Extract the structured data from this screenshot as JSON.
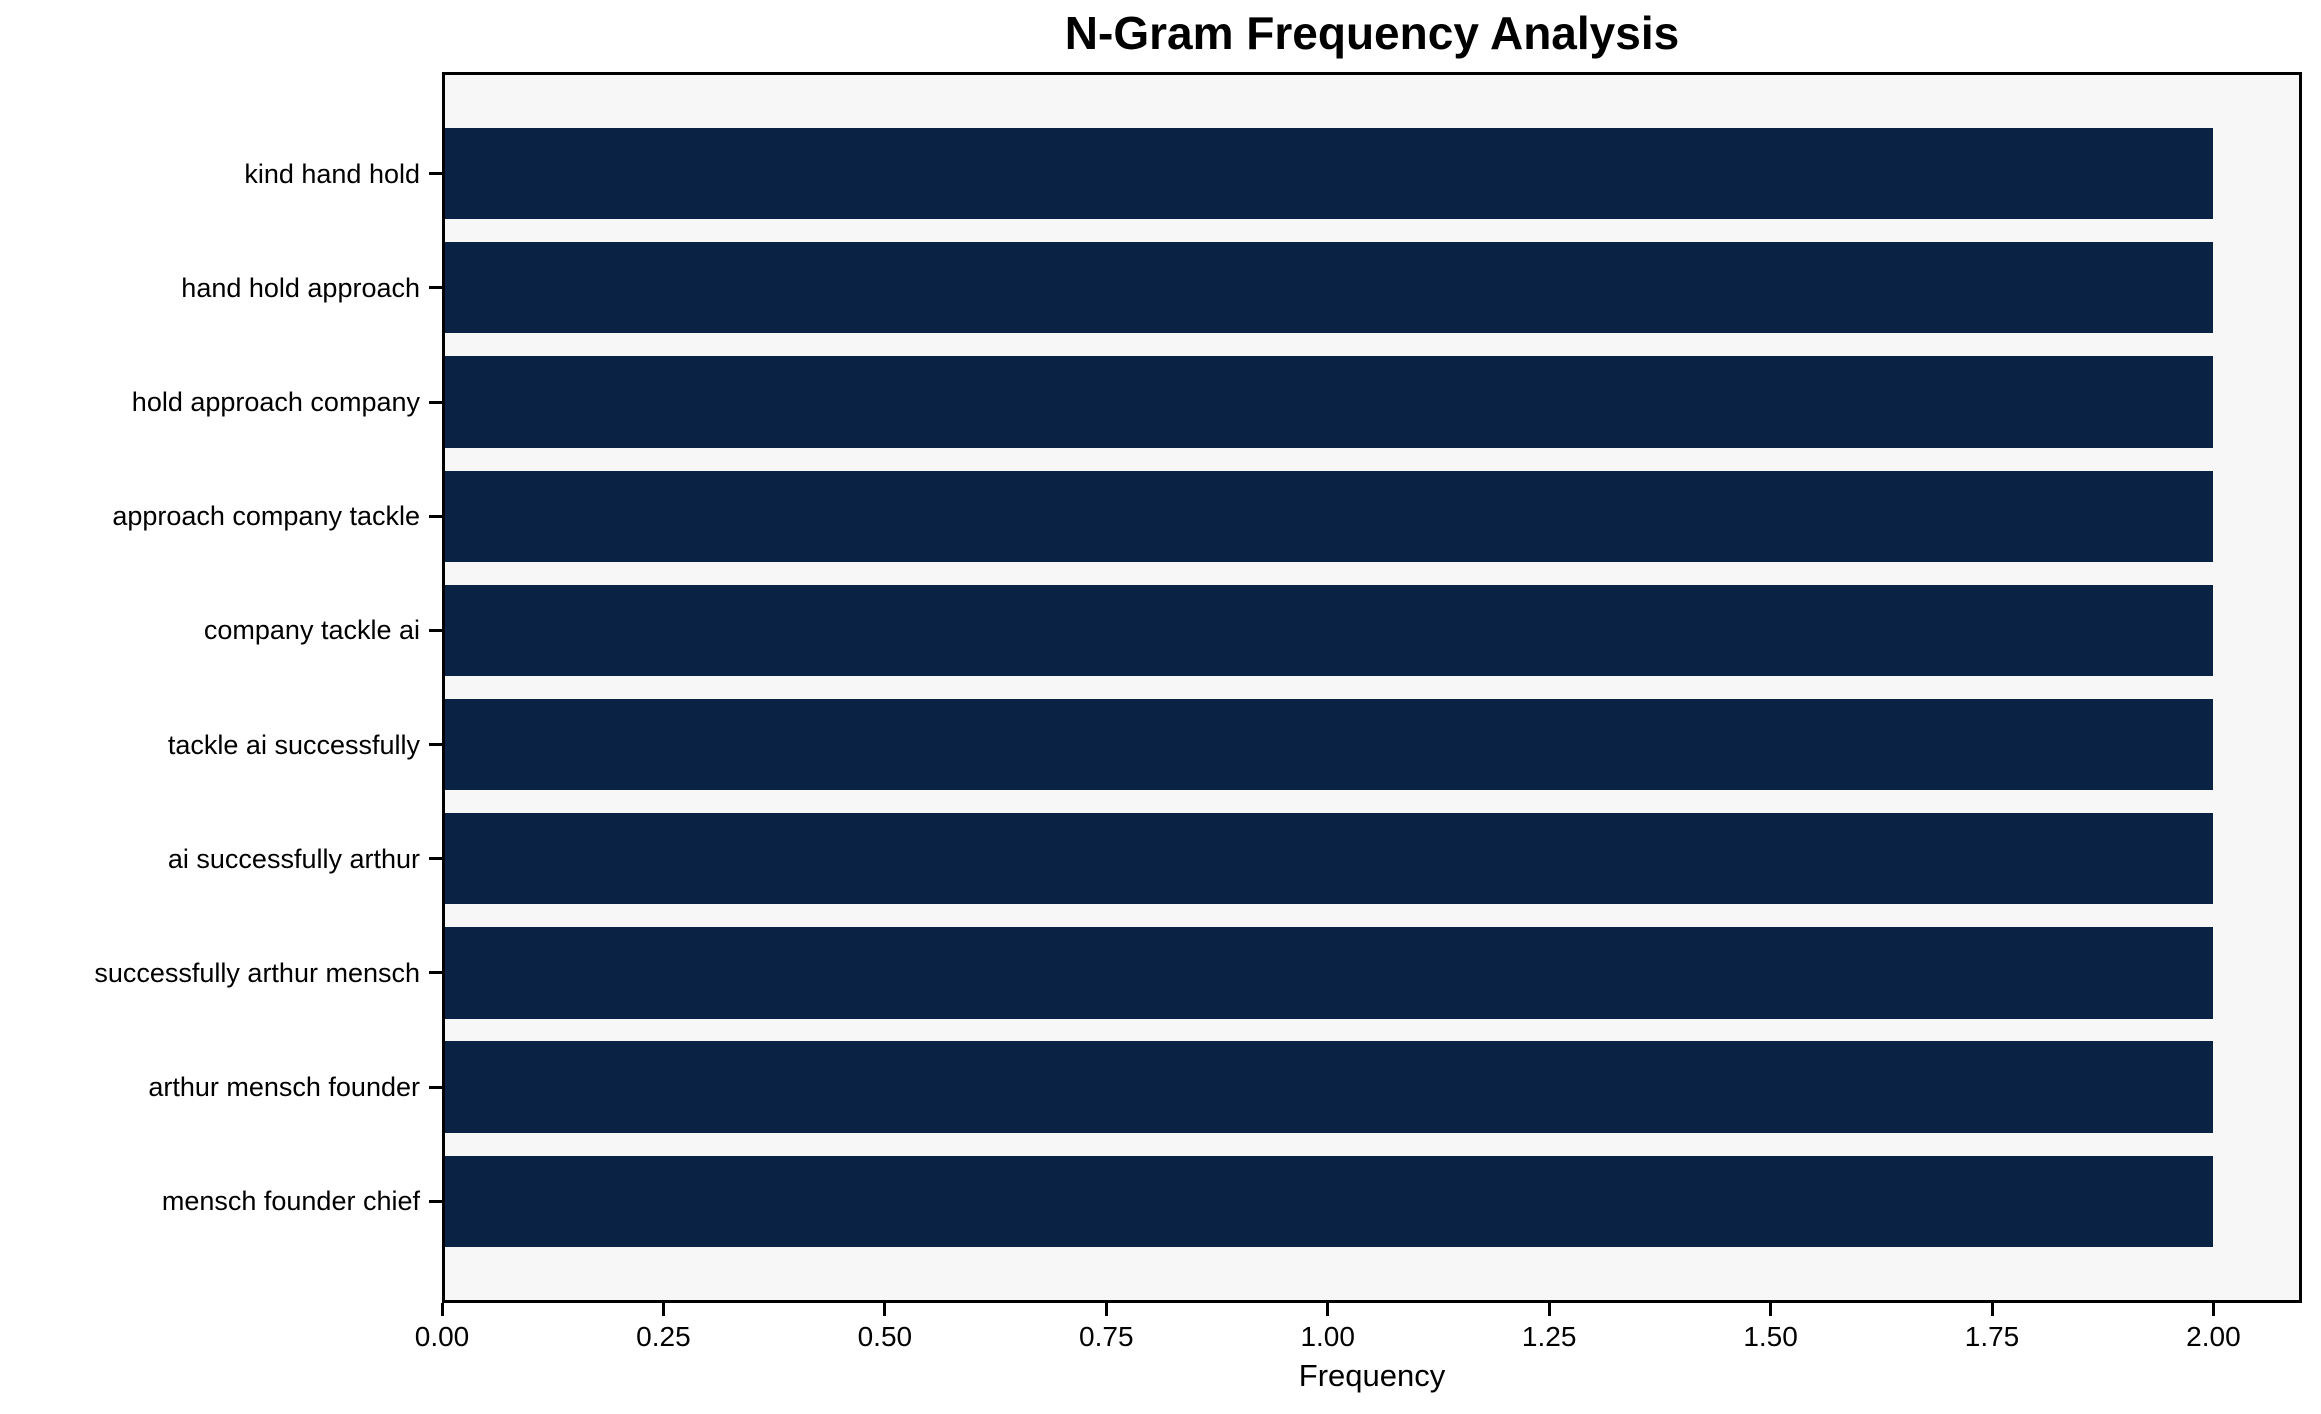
{
  "chart_data": {
    "type": "bar",
    "orientation": "horizontal",
    "title": "N-Gram Frequency Analysis",
    "xlabel": "Frequency",
    "ylabel": "",
    "categories": [
      "kind hand hold",
      "hand hold approach",
      "hold approach company",
      "approach company tackle",
      "company tackle ai",
      "tackle ai successfully",
      "ai successfully arthur",
      "successfully arthur mensch",
      "arthur mensch founder",
      "mensch founder chief"
    ],
    "values": [
      2,
      2,
      2,
      2,
      2,
      2,
      2,
      2,
      2,
      2
    ],
    "xlim": [
      0,
      2.1
    ],
    "xticks": [
      0.0,
      0.25,
      0.5,
      0.75,
      1.0,
      1.25,
      1.5,
      1.75,
      2.0
    ],
    "xtick_labels": [
      "0.00",
      "0.25",
      "0.50",
      "0.75",
      "1.00",
      "1.25",
      "1.50",
      "1.75",
      "2.00"
    ],
    "grid": false,
    "legend": null,
    "bar_color": "#0a2345",
    "plot_background": "#f7f7f7",
    "figure_background": "#ffffff",
    "spine_color": "#000000",
    "text_color": "#000000"
  }
}
